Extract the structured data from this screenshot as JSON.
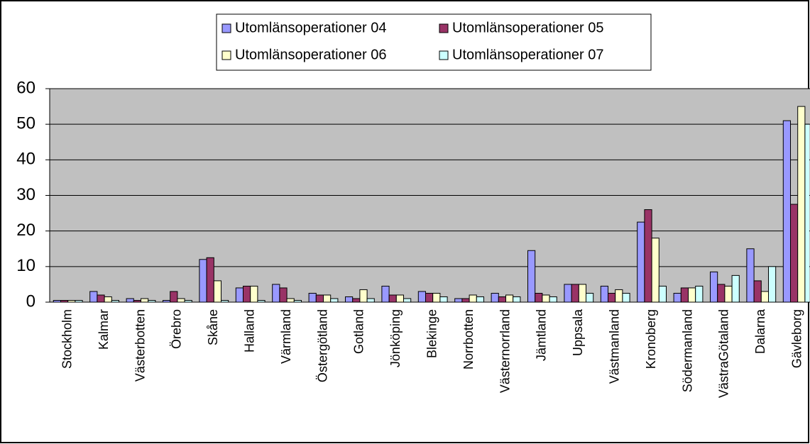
{
  "chart_data": {
    "type": "bar",
    "categories": [
      "Stockholm",
      "Kalmar",
      "Västerbotten",
      "Örebro",
      "Skåne",
      "Halland",
      "Värmland",
      "Östergötland",
      "Gotland",
      "Jönköping",
      "Blekinge",
      "Norrbotten",
      "Västernorrland",
      "Jämtland",
      "Uppsala",
      "Västmanland",
      "Kronoberg",
      "Södermanland",
      "VästraGötaland",
      "Dalarna",
      "Gävleborg"
    ],
    "series": [
      {
        "name": "Utomlänsoperationer 04",
        "color": "#9999ff",
        "values": [
          0.5,
          3,
          1,
          0.5,
          12,
          4,
          5,
          2.5,
          1.5,
          4.5,
          3,
          1,
          2.5,
          14.5,
          5,
          4.5,
          22.5,
          2.5,
          8.5,
          15,
          51
        ]
      },
      {
        "name": "Utomlänsoperationer 05",
        "color": "#993366",
        "values": [
          0.5,
          2,
          0.5,
          3,
          12.5,
          4.5,
          4,
          2,
          1,
          2,
          2.5,
          1,
          1.5,
          2.5,
          5,
          2.5,
          26,
          4,
          5,
          6,
          27.5
        ]
      },
      {
        "name": "Utomlänsoperationer 06",
        "color": "#ffffcc",
        "values": [
          0.5,
          1.5,
          1,
          1,
          6,
          4.5,
          1,
          2,
          3.5,
          2,
          2.5,
          2,
          2,
          2,
          5,
          3.5,
          18,
          4,
          4.5,
          3,
          55
        ]
      },
      {
        "name": "Utomlänsoperationer 07",
        "color": "#ccffff",
        "values": [
          0.5,
          0.5,
          0.5,
          0.5,
          0.5,
          0.5,
          0.5,
          1,
          1,
          1,
          1.5,
          1.5,
          1.5,
          1.5,
          2.5,
          2.5,
          4.5,
          4.5,
          7.5,
          10,
          50
        ]
      }
    ],
    "ylim": [
      0,
      60
    ],
    "yticks": [
      0,
      10,
      20,
      30,
      40,
      50,
      60
    ],
    "grid": true,
    "legend": "top"
  }
}
